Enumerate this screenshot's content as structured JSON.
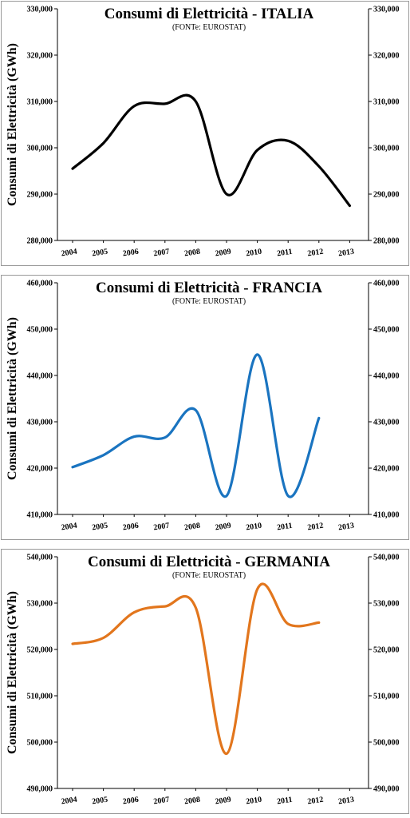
{
  "chart_data": [
    {
      "type": "line",
      "title": "Consumi di Elettricità - ITALIA",
      "subtitle": "(FONTe: EUROSTAT)",
      "ylabel": "Consumi di Elettricità (GWh)",
      "categories": [
        "2004",
        "2005",
        "2006",
        "2007",
        "2008",
        "2009",
        "2010",
        "2011",
        "2012",
        "2013"
      ],
      "values": [
        295500,
        301000,
        309000,
        309500,
        310000,
        290000,
        299500,
        301500,
        296000,
        287500
      ],
      "ylim": [
        280000,
        330000
      ],
      "yticks": [
        "280,000",
        "290,000",
        "300,000",
        "310,000",
        "320,000",
        "330,000"
      ],
      "color": "#000000",
      "grid": false
    },
    {
      "type": "line",
      "title": "Consumi di Elettricità - FRANCIA",
      "subtitle": "(FONTe: EUROSTAT)",
      "ylabel": "Consumi di Elettricità (GWh)",
      "categories": [
        "2004",
        "2005",
        "2006",
        "2007",
        "2008",
        "2009",
        "2010",
        "2011",
        "2012",
        "2013"
      ],
      "values": [
        420200,
        422800,
        426800,
        426600,
        432500,
        414000,
        444500,
        414000,
        430800,
        null
      ],
      "ylim": [
        410000,
        460000
      ],
      "yticks": [
        "410,000",
        "420,000",
        "430,000",
        "440,000",
        "450,000",
        "460,000"
      ],
      "color": "#1a74c0",
      "grid": false
    },
    {
      "type": "line",
      "title": "Consumi di Elettricità - GERMANIA",
      "subtitle": "(FONTe: EUROSTAT)",
      "ylabel": "Consumi di Elettricità (GWh)",
      "categories": [
        "2004",
        "2005",
        "2006",
        "2007",
        "2008",
        "2009",
        "2010",
        "2011",
        "2012",
        "2013"
      ],
      "values": [
        521200,
        522500,
        528000,
        529300,
        529000,
        497500,
        533000,
        525500,
        525800,
        null
      ],
      "ylim": [
        490000,
        540000
      ],
      "yticks": [
        "490,000",
        "500,000",
        "510,000",
        "520,000",
        "530,000",
        "540,000"
      ],
      "color": "#e2761d",
      "grid": false
    }
  ]
}
